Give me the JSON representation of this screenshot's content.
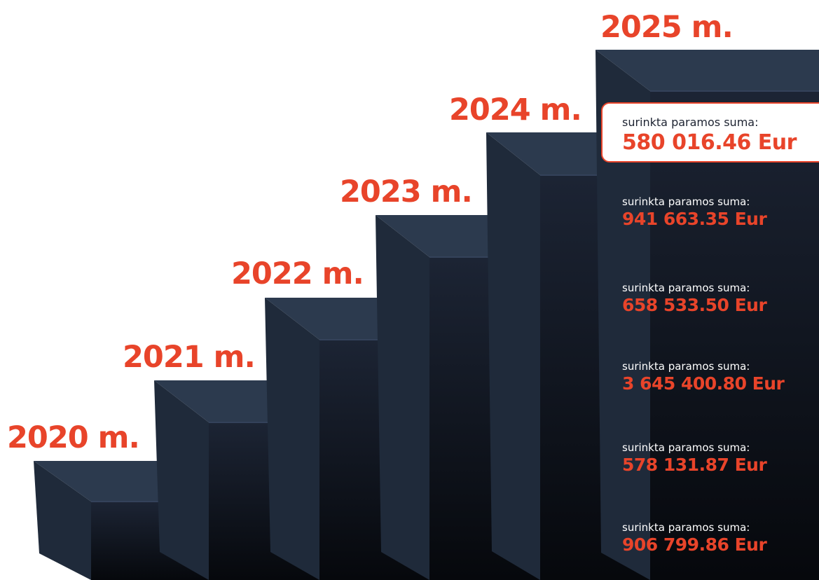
{
  "colors": {
    "accent": "#e8442a",
    "step_top": "#2c3a4e",
    "step_left": "#1f2a3a",
    "step_front_top": "#1c2434",
    "step_front_bottom": "#06080c",
    "background": "#ffffff"
  },
  "steps": [
    {
      "year": "2020 m.",
      "caption": "surinkta paramos suma:",
      "amount": "906 799.86 Eur"
    },
    {
      "year": "2021 m.",
      "caption": "surinkta paramos suma:",
      "amount": "578 131.87 Eur"
    },
    {
      "year": "2022 m.",
      "caption": "surinkta paramos suma:",
      "amount": "3 645 400.80 Eur"
    },
    {
      "year": "2023 m.",
      "caption": "surinkta paramos suma:",
      "amount": "658 533.50 Eur"
    },
    {
      "year": "2024 m.",
      "caption": "surinkta paramos suma:",
      "amount": "941 663.35 Eur"
    }
  ],
  "top_step": {
    "year": "2025 m.",
    "card": {
      "caption": "surinkta paramos suma:",
      "amount": "580 016.46 Eur"
    }
  }
}
